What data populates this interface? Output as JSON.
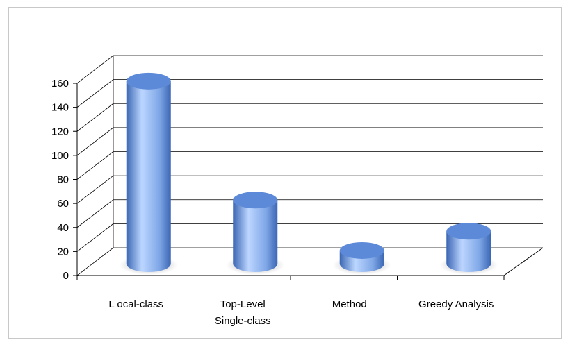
{
  "chart_data": {
    "type": "bar",
    "style": "3d-cylinder",
    "title": "",
    "xlabel": "",
    "ylabel": "",
    "categories": [
      "L ocal-class",
      "Top-Level Single-class",
      "Method",
      "Greedy Analysis"
    ],
    "category_lines": [
      [
        "L ocal-class"
      ],
      [
        "Top-Level",
        "Single-class"
      ],
      [
        "Method"
      ],
      [
        "Greedy Analysis"
      ]
    ],
    "values": [
      152,
      53,
      11,
      27
    ],
    "ylim": [
      0,
      160
    ],
    "yticks": [
      "0",
      "20",
      "40",
      "60",
      "80",
      "100",
      "120",
      "140",
      "160"
    ],
    "grid": true,
    "legend": "none",
    "colors": {
      "bar_light": "#bcd6ff",
      "bar_mid": "#7ea6e6",
      "bar_dark": "#3a66b3",
      "bar_top": "#5d8ad8",
      "gridline": "#000000",
      "frame": "#c8c8c8"
    }
  }
}
